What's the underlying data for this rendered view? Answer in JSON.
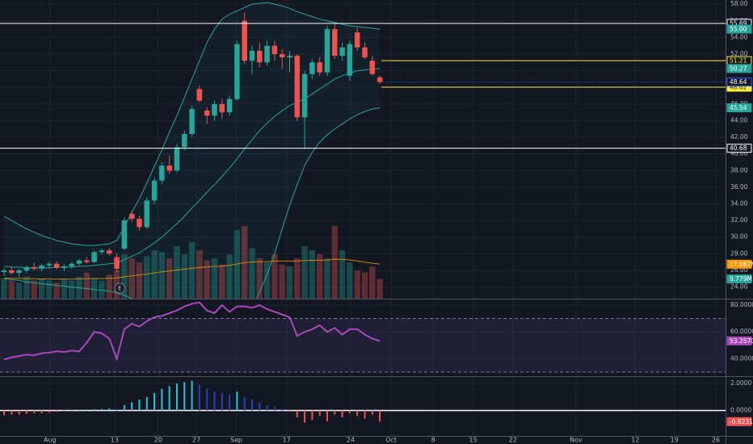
{
  "chart_data": {
    "type": "candlestick",
    "x": [
      0,
      1,
      2,
      3,
      4,
      5,
      6,
      7,
      8,
      9,
      10,
      11,
      12,
      13,
      14,
      15,
      16,
      17,
      18,
      19,
      20,
      21,
      22,
      23,
      24,
      25,
      26,
      27,
      28,
      29,
      30,
      31,
      32,
      33,
      34,
      35,
      36,
      37,
      38,
      39,
      40,
      41,
      42,
      43,
      44,
      45,
      46,
      47,
      48,
      49,
      50
    ],
    "xlim": [
      -0.54,
      96
    ],
    "xticks": [
      {
        "value": 6.1,
        "label": "Aug"
      },
      {
        "value": 14.7,
        "label": "13"
      },
      {
        "value": 20.5,
        "label": "20"
      },
      {
        "value": 25.6,
        "label": "27"
      },
      {
        "value": 30.9,
        "label": "Sep"
      },
      {
        "value": 37.6,
        "label": "17"
      },
      {
        "value": 46.1,
        "label": "24"
      },
      {
        "value": 51.5,
        "label": "Oct"
      },
      {
        "value": 57.1,
        "label": "8"
      },
      {
        "value": 62.4,
        "label": "15"
      },
      {
        "value": 67.7,
        "label": "22"
      },
      {
        "value": 76.1,
        "label": "Nov"
      },
      {
        "value": 84,
        "label": "12"
      },
      {
        "value": 89.2,
        "label": "19"
      },
      {
        "value": 94.7,
        "label": "26"
      }
    ],
    "ylim": [
      22.6,
      58.5
    ],
    "yticks": [
      {
        "value": 58,
        "label": "58.00"
      },
      {
        "value": 56,
        "label": "56.00"
      },
      {
        "value": 54,
        "label": "54.00"
      },
      {
        "value": 52,
        "label": "52.00"
      },
      {
        "value": 50,
        "label": "50.00"
      },
      {
        "value": 48,
        "label": "48.00"
      },
      {
        "value": 46,
        "label": "46.00"
      },
      {
        "value": 44,
        "label": "44.00"
      },
      {
        "value": 42,
        "label": "42.00"
      },
      {
        "value": 40,
        "label": "40.00"
      },
      {
        "value": 38,
        "label": "38.00"
      },
      {
        "value": 36,
        "label": "36.00"
      },
      {
        "value": 34,
        "label": "34.00"
      },
      {
        "value": 32,
        "label": "32.00"
      },
      {
        "value": 30,
        "label": "30.00"
      },
      {
        "value": 28,
        "label": "28.00"
      },
      {
        "value": 26,
        "label": "26.00"
      },
      {
        "value": 24,
        "label": "24.00"
      }
    ],
    "grid": true,
    "up_color": "#26a69a",
    "down_color": "#ef5350",
    "open": [
      25.8,
      26.0,
      25.7,
      26.0,
      26.4,
      26.2,
      26.6,
      26.8,
      26.3,
      26.5,
      26.8,
      27.2,
      27.0,
      28.2,
      28.4,
      27.6,
      28.6,
      32.8,
      32.2,
      31.2,
      34.4,
      36.8,
      38.6,
      38.0,
      40.8,
      42.4,
      47.8,
      45.2,
      44.6,
      46.0,
      45.0,
      46.6,
      56.0,
      51.2,
      52.4,
      51.0,
      53.0,
      52.0,
      51.6,
      51.8,
      44.4,
      49.6,
      51.0,
      49.8,
      55.0,
      51.8,
      49.4,
      54.6,
      52.8,
      51.2,
      49.2
    ],
    "high": [
      26.3,
      26.4,
      26.2,
      26.6,
      26.9,
      26.8,
      27.0,
      27.1,
      26.7,
      27.0,
      27.4,
      27.6,
      28.4,
      28.6,
      28.7,
      28.0,
      32.4,
      33.2,
      32.6,
      34.8,
      37.2,
      39.0,
      39.8,
      41.2,
      42.8,
      45.8,
      48.2,
      45.6,
      46.4,
      46.6,
      47.0,
      53.6,
      57.0,
      53.0,
      53.4,
      53.6,
      53.6,
      52.6,
      52.4,
      52.0,
      50.0,
      51.4,
      51.6,
      55.4,
      55.6,
      53.4,
      53.6,
      55.2,
      53.4,
      51.8,
      49.4
    ],
    "low": [
      25.3,
      25.5,
      25.2,
      25.7,
      26.0,
      25.9,
      26.2,
      26.1,
      25.9,
      26.2,
      26.6,
      26.8,
      26.9,
      27.9,
      27.8,
      25.8,
      28.4,
      31.8,
      30.8,
      31.0,
      34.0,
      36.4,
      37.6,
      37.8,
      40.4,
      42.0,
      46.2,
      43.6,
      44.0,
      44.2,
      44.6,
      46.4,
      50.8,
      49.6,
      50.4,
      50.6,
      51.2,
      50.2,
      49.8,
      44.0,
      40.6,
      49.0,
      49.4,
      49.4,
      51.4,
      51.2,
      48.8,
      52.4,
      51.4,
      49.4,
      48.4
    ],
    "close": [
      26.0,
      25.7,
      26.0,
      26.4,
      26.2,
      26.6,
      26.8,
      26.3,
      26.5,
      26.8,
      27.2,
      27.0,
      28.2,
      28.4,
      28.0,
      26.2,
      32.0,
      32.2,
      31.2,
      34.4,
      36.8,
      38.6,
      38.0,
      40.8,
      42.4,
      45.4,
      46.4,
      44.6,
      46.0,
      45.0,
      46.6,
      53.2,
      51.2,
      52.4,
      51.0,
      53.0,
      52.0,
      51.6,
      51.8,
      44.4,
      49.6,
      51.0,
      49.8,
      55.0,
      51.8,
      52.8,
      53.2,
      52.8,
      51.6,
      49.6,
      48.64
    ],
    "close_label": "48.64",
    "close_label_color": "#2962ff",
    "overlays": [
      {
        "color": "#26a69a",
        "value_label": "50.27",
        "values": [
          26.5,
          26.4,
          26.4,
          26.3,
          26.3,
          26.3,
          26.3,
          26.4,
          26.4,
          26.4,
          26.5,
          26.5,
          26.6,
          26.7,
          26.8,
          26.9,
          27.3,
          27.7,
          28.1,
          28.7,
          29.3,
          30.0,
          30.8,
          31.6,
          32.5,
          33.5,
          34.4,
          35.4,
          36.3,
          37.3,
          38.3,
          39.4,
          40.6,
          41.7,
          42.8,
          43.7,
          44.5,
          45.2,
          45.8,
          46.2,
          46.6,
          47.2,
          47.8,
          48.4,
          49.0,
          49.4,
          49.7,
          50.0,
          50.1,
          50.2,
          50.27
        ]
      },
      {
        "color": "#26a69a",
        "value_label": "55.00",
        "values": [
          32.5,
          32.0,
          31.5,
          31.0,
          30.6,
          30.2,
          29.9,
          29.6,
          29.4,
          29.2,
          29.1,
          29.0,
          29.0,
          29.1,
          29.2,
          29.6,
          31.2,
          33.0,
          34.6,
          36.5,
          38.5,
          40.5,
          42.6,
          44.6,
          46.8,
          49.0,
          51.2,
          53.4,
          55.0,
          56.2,
          56.8,
          57.2,
          57.6,
          58.0,
          58.1,
          58.2,
          58.0,
          57.8,
          57.5,
          57.1,
          56.8,
          56.5,
          56.2,
          56.0,
          55.8,
          55.6,
          55.4,
          55.3,
          55.2,
          55.1,
          55.0
        ]
      },
      {
        "color": "#26a69a",
        "value_label": "45.54",
        "values": [
          25.0,
          24.9,
          24.8,
          24.6,
          24.5,
          24.4,
          24.3,
          24.2,
          24.1,
          24.0,
          23.9,
          23.8,
          23.7,
          23.6,
          23.5,
          23.3,
          23.0,
          22.6,
          22.2,
          21.8,
          21.3,
          20.8,
          20.4,
          20.0,
          19.6,
          19.2,
          18.9,
          18.7,
          18.6,
          18.6,
          18.8,
          19.2,
          20.0,
          21.5,
          23.4,
          25.5,
          28.0,
          31.0,
          33.8,
          36.3,
          38.6,
          40.2,
          41.4,
          42.3,
          43.0,
          43.6,
          44.2,
          44.7,
          45.1,
          45.4,
          45.54
        ]
      }
    ],
    "levels": [
      {
        "value": 55.69,
        "label": "55.69",
        "color": "#ffffff"
      },
      {
        "value": 51.21,
        "label": "51.21",
        "color": "#ffeb3b"
      },
      {
        "value": 48.02,
        "label": "48.02",
        "color": "#ffeb3b"
      },
      {
        "value": 40.68,
        "label": "40.68",
        "color": "#ffffff"
      }
    ],
    "events": [
      {
        "x": 15.4,
        "label": "E"
      }
    ],
    "volume": {
      "ylim": [
        0,
        148
      ],
      "values": [
        10,
        9,
        8,
        11,
        9,
        10,
        9,
        8,
        10,
        9,
        11,
        13,
        10,
        9,
        12,
        14,
        22,
        20,
        18,
        21,
        24,
        23,
        20,
        26,
        22,
        28,
        24,
        19,
        20,
        17,
        22,
        34,
        36,
        25,
        20,
        18,
        22,
        17,
        16,
        20,
        26,
        24,
        22,
        20,
        36,
        24,
        18,
        14,
        13,
        16,
        9.779
      ],
      "value_label": "9.779M",
      "ma": {
        "color": "#ff9800",
        "value_label": "17.087M",
        "values": [
          10.2,
          10.1,
          10.0,
          9.9,
          9.9,
          9.8,
          9.8,
          9.7,
          9.7,
          9.7,
          9.8,
          9.9,
          10.0,
          10.0,
          10.1,
          10.3,
          10.8,
          11.3,
          11.7,
          12.2,
          12.8,
          13.3,
          13.7,
          14.2,
          14.6,
          15.1,
          15.5,
          15.7,
          16.0,
          16.1,
          16.5,
          17.2,
          17.9,
          18.2,
          18.3,
          18.4,
          18.6,
          18.6,
          18.6,
          18.7,
          18.9,
          19.0,
          19.1,
          19.1,
          19.6,
          19.5,
          19.2,
          18.7,
          18.1,
          17.6,
          17.087
        ]
      }
    },
    "rsi": {
      "ylim": [
        26.9,
        84.2
      ],
      "yticks": [
        {
          "value": 80,
          "label": "80.0000"
        },
        {
          "value": 60,
          "label": "60.0000"
        },
        {
          "value": 40,
          "label": "40.0000"
        }
      ],
      "bands": [
        70,
        30
      ],
      "color": "#ab47bc",
      "value_label": "53.2570",
      "values": [
        39.4,
        41,
        42,
        43,
        42.5,
        44,
        44.5,
        45.5,
        45,
        46,
        45.5,
        52,
        60,
        59,
        55,
        40,
        62,
        66,
        64,
        68,
        71,
        72,
        74,
        76,
        79,
        81,
        82,
        76,
        74,
        80,
        75,
        79,
        79,
        78,
        80,
        77,
        75,
        73,
        71,
        57,
        60,
        62,
        65,
        60,
        63,
        58,
        62,
        62,
        58,
        55,
        53.257
      ]
    },
    "macd": {
      "ylim": [
        -1.88,
        2.48
      ],
      "yticks": [
        {
          "value": 2,
          "label": "2.0000"
        },
        {
          "value": 0,
          "label": "0.0000"
        }
      ],
      "rising_color": "#26c6da",
      "falling_color": "#2a3fbf",
      "negative_color": "#ef5350",
      "value_label": "-0.8231",
      "values": [
        -0.35,
        -0.3,
        -0.3,
        -0.25,
        -0.2,
        -0.2,
        -0.15,
        -0.1,
        -0.05,
        0.02,
        0.05,
        0.08,
        0.1,
        0.12,
        0.15,
        0.1,
        0.4,
        0.6,
        0.8,
        1.0,
        1.3,
        1.6,
        1.8,
        2.0,
        2.1,
        2.2,
        1.9,
        1.6,
        1.4,
        1.3,
        1.2,
        1.4,
        1.0,
        0.8,
        0.6,
        0.4,
        0.3,
        0.1,
        -0.05,
        -0.5,
        -0.9,
        -0.7,
        -0.4,
        -0.8,
        -0.3,
        -0.5,
        -0.2,
        -0.4,
        -0.6,
        -0.3,
        -0.8231
      ]
    }
  }
}
